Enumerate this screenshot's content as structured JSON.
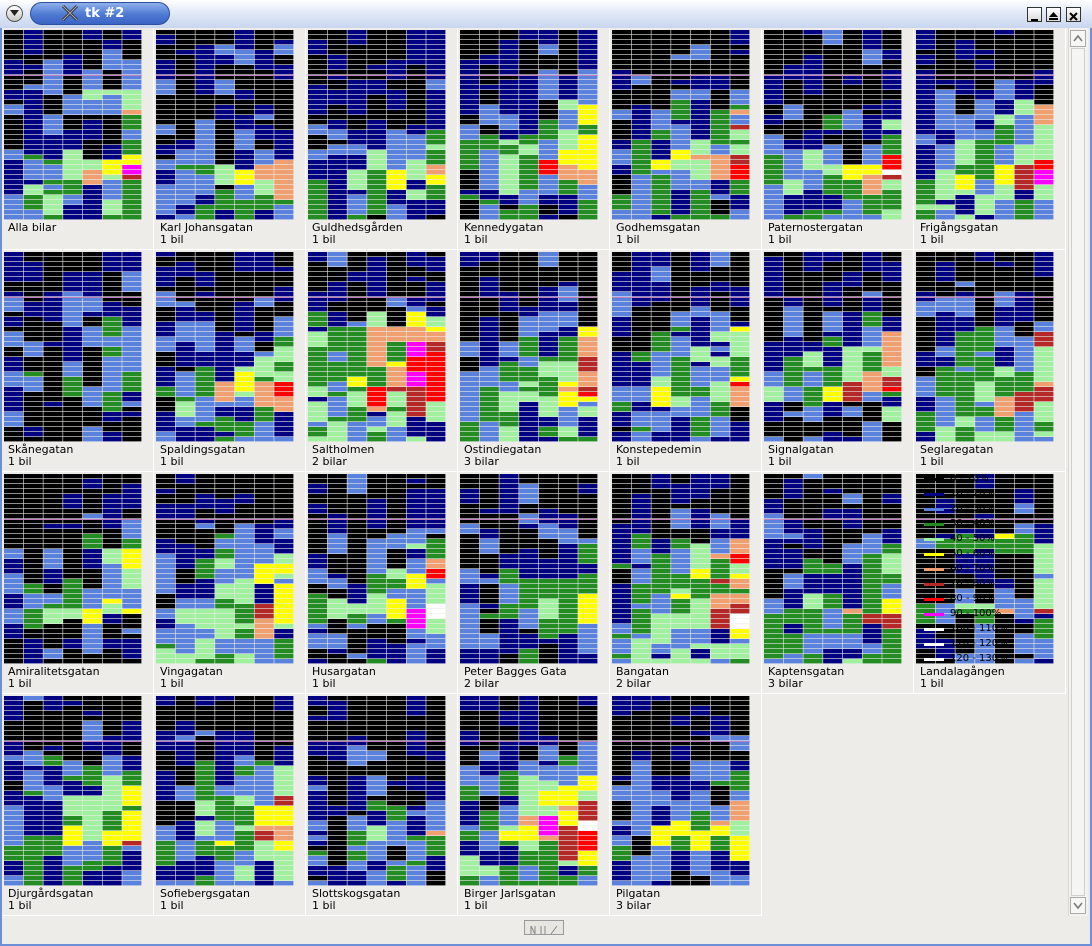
{
  "window": {
    "title": "tk #2"
  },
  "colors": [
    "#000000",
    "#000080",
    "#5a82dc",
    "#238c23",
    "#a0f0a0",
    "#ffff00",
    "#f0a070",
    "#b42828",
    "#ff0000",
    "#ff00ff",
    "#ffffff",
    "#ffffff",
    "#ffffff"
  ],
  "legend": [
    {
      "label": "0 - 10%"
    },
    {
      "label": "10 - 20%"
    },
    {
      "label": "20 - 30%"
    },
    {
      "label": "30 - 40%"
    },
    {
      "label": "40 - 50%"
    },
    {
      "label": "50 - 60%"
    },
    {
      "label": "60 - 70%"
    },
    {
      "label": "70 - 80%"
    },
    {
      "label": "80 - 90%"
    },
    {
      "label": "90 - 100%"
    },
    {
      "label": "100 - 110%"
    },
    {
      "label": "110 - 120%"
    },
    {
      "label": "120 - 130%"
    }
  ],
  "panels": [
    {
      "name": "Alla bilar",
      "count": "",
      "profile": [
        3,
        3,
        1,
        1,
        1,
        4,
        6,
        6
      ],
      "hot": [
        6,
        7
      ]
    },
    {
      "name": "Karl Johansgatan",
      "count": "1 bil",
      "profile": [
        1,
        1,
        1,
        1,
        2,
        2,
        5,
        5
      ],
      "hot": [
        6,
        7
      ]
    },
    {
      "name": "Guldhedsgården",
      "count": "1 bil",
      "profile": [
        0,
        0,
        1,
        1,
        2,
        3,
        5,
        5
      ],
      "hot": [
        6
      ]
    },
    {
      "name": "Kennedygatan",
      "count": "1 bil",
      "profile": [
        1,
        2,
        3,
        3,
        4,
        6,
        8,
        4
      ],
      "hot": [
        5,
        6
      ]
    },
    {
      "name": "Godhemsgatan",
      "count": "1 bil",
      "profile": [
        2,
        3,
        3,
        4,
        3,
        6,
        6,
        5
      ],
      "hot": [
        6
      ]
    },
    {
      "name": "Paternostergatan",
      "count": "1 bil",
      "profile": [
        0,
        1,
        2,
        1,
        1,
        5,
        6,
        6
      ],
      "hot": [
        6,
        7
      ]
    },
    {
      "name": "Frigångsgatan",
      "count": "1 bil",
      "profile": [
        3,
        6,
        3,
        4,
        5,
        6,
        6,
        7
      ],
      "hot": [
        6,
        7
      ]
    },
    {
      "name": "Skånegatan",
      "count": "1 bil",
      "profile": [
        0,
        2,
        1,
        0,
        1,
        4,
        1,
        0
      ],
      "hot": [
        5
      ]
    },
    {
      "name": "Spaldingsgatan",
      "count": "1 bil",
      "profile": [
        1,
        1,
        1,
        2,
        3,
        5,
        6,
        5
      ],
      "hot": [
        6
      ]
    },
    {
      "name": "Saltholmen",
      "count": "2 bilar",
      "profile": [
        5,
        6,
        6,
        7,
        6,
        7,
        7,
        7
      ],
      "hot": [
        3,
        5,
        7
      ]
    },
    {
      "name": "Ostindiegatan",
      "count": "3 bilar",
      "profile": [
        1,
        2,
        3,
        3,
        4,
        5,
        6,
        6
      ],
      "hot": [
        6,
        7
      ]
    },
    {
      "name": "Konstepedemin",
      "count": "1 bil",
      "profile": [
        1,
        3,
        3,
        3,
        3,
        5,
        6,
        4
      ],
      "hot": [
        6
      ]
    },
    {
      "name": "Signalgatan",
      "count": "1 bil",
      "profile": [
        2,
        3,
        3,
        4,
        4,
        6,
        7,
        2
      ],
      "hot": [
        6
      ]
    },
    {
      "name": "Seglaregatan",
      "count": "1 bil",
      "profile": [
        2,
        3,
        3,
        3,
        4,
        4,
        6,
        6
      ],
      "hot": [
        6
      ]
    },
    {
      "name": "Amiralitetsgatan",
      "count": "1 bil",
      "profile": [
        2,
        3,
        2,
        1,
        3,
        5,
        6,
        1
      ],
      "hot": [
        6
      ]
    },
    {
      "name": "Vingagatan",
      "count": "1 bil",
      "profile": [
        2,
        3,
        4,
        3,
        3,
        4,
        6,
        7
      ],
      "hot": [
        6
      ]
    },
    {
      "name": "Husargatan",
      "count": "1 bil",
      "profile": [
        1,
        1,
        3,
        5,
        3,
        5,
        9,
        3
      ],
      "hot": [
        5,
        6
      ]
    },
    {
      "name": "Peter Bagges Gata",
      "count": "2 bilar",
      "profile": [
        1,
        1,
        2,
        3,
        3,
        4,
        4,
        4
      ],
      "hot": []
    },
    {
      "name": "Bangatan",
      "count": "2 bilar",
      "profile": [
        3,
        5,
        5,
        4,
        4,
        6,
        7,
        7
      ],
      "hot": [
        5,
        6,
        7
      ]
    },
    {
      "name": "Kaptensgatan",
      "count": "3 bilar",
      "profile": [
        2,
        2,
        2,
        2,
        3,
        4,
        6,
        6
      ],
      "hot": [
        6
      ]
    },
    {
      "name": "Landalagången",
      "count": "1 bil",
      "profile": [
        5,
        0,
        0,
        0,
        1,
        2,
        6,
        2
      ],
      "hot": [
        6
      ]
    },
    {
      "name": "Djurgårdsgatan",
      "count": "1 bil",
      "profile": [
        2,
        3,
        3,
        4,
        4,
        5,
        6,
        5
      ],
      "hot": [
        6
      ]
    },
    {
      "name": "Sofiebergsgatan",
      "count": "1 bil",
      "profile": [
        3,
        4,
        3,
        4,
        4,
        5,
        6,
        6
      ],
      "hot": [
        6
      ]
    },
    {
      "name": "Slottskogsgatan",
      "count": "1 bil",
      "profile": [
        0,
        2,
        2,
        0,
        2,
        2,
        4,
        3
      ],
      "hot": []
    },
    {
      "name": "Birger Jarlsgatan",
      "count": "1 bil",
      "profile": [
        2,
        5,
        6,
        4,
        5,
        9,
        7,
        6
      ],
      "hot": [
        5,
        6
      ]
    },
    {
      "name": "Pilgatan",
      "count": "3 bilar",
      "profile": [
        1,
        1,
        2,
        2,
        3,
        5,
        6,
        4
      ],
      "hot": [
        6
      ]
    }
  ]
}
